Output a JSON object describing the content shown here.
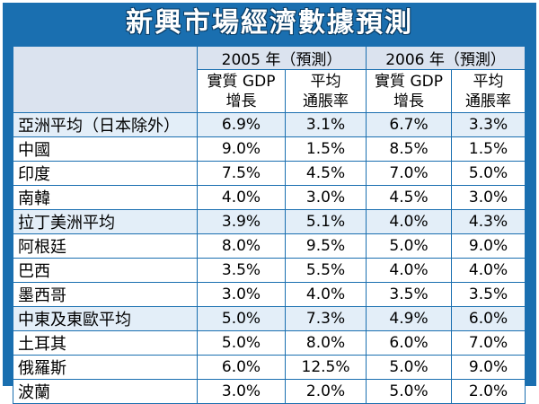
{
  "title": "新興市場經濟數據預測",
  "year_headers": [
    "2005 年（預測）",
    "2006 年（預測）"
  ],
  "sub_headers": [
    {
      "line1": "實質 GDP",
      "line2": "增長"
    },
    {
      "line1": "平均",
      "line2": "通脹率"
    },
    {
      "line1": "實質 GDP",
      "line2": "增長"
    },
    {
      "line1": "平均",
      "line2": "通脹率"
    }
  ],
  "rows": [
    {
      "region": "亞洲平均（日本除外）",
      "v": [
        "6.9%",
        "3.1%",
        "6.7%",
        "3.3%"
      ]
    },
    {
      "region": "中國",
      "v": [
        "9.0%",
        "1.5%",
        "8.5%",
        "1.5%"
      ]
    },
    {
      "region": "印度",
      "v": [
        "7.5%",
        "4.5%",
        "7.0%",
        "5.0%"
      ]
    },
    {
      "region": "南韓",
      "v": [
        "4.0%",
        "3.0%",
        "4.5%",
        "3.0%"
      ]
    },
    {
      "region": "拉丁美洲平均",
      "v": [
        "3.9%",
        "5.1%",
        "4.0%",
        "4.3%"
      ]
    },
    {
      "region": "阿根廷",
      "v": [
        "8.0%",
        "9.5%",
        "5.0%",
        "9.0%"
      ]
    },
    {
      "region": "巴西",
      "v": [
        "3.5%",
        "5.5%",
        "4.0%",
        "4.0%"
      ]
    },
    {
      "region": "墨西哥",
      "v": [
        "3.0%",
        "4.0%",
        "3.5%",
        "3.5%"
      ]
    },
    {
      "region": "中東及東歐平均",
      "v": [
        "5.0%",
        "7.3%",
        "4.9%",
        "6.0%"
      ]
    },
    {
      "region": "土耳其",
      "v": [
        "5.0%",
        "8.0%",
        "6.0%",
        "7.0%"
      ]
    },
    {
      "region": "俄羅斯",
      "v": [
        "6.0%",
        "12.5%",
        "5.0%",
        "9.0%"
      ]
    },
    {
      "region": "波蘭",
      "v": [
        "3.0%",
        "2.0%",
        "5.0%",
        "2.0%"
      ]
    }
  ],
  "colors": {
    "frame": "#1a6fb0",
    "header_fill": "#dbe3ef",
    "alt_row": "#e3eef8"
  }
}
